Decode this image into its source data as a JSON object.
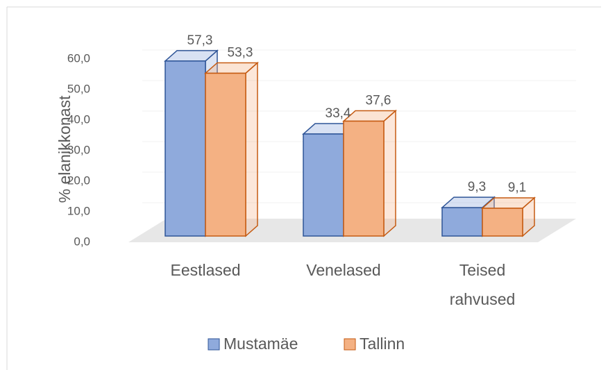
{
  "chart_data": {
    "type": "bar3d",
    "y_label": "% elanikkonast",
    "categories": [
      "Eestlased",
      "Venelased",
      "Teised rahvused"
    ],
    "series": [
      {
        "name": "Mustamäe",
        "color": "#8faadc",
        "stroke": "#2f5597",
        "values": [
          57.3,
          33.4,
          9.3
        ],
        "value_labels": [
          "57,3",
          "33,4",
          "9,3"
        ]
      },
      {
        "name": "Tallinn",
        "color": "#f4b183",
        "stroke": "#c55a11",
        "values": [
          53.3,
          37.6,
          9.1
        ],
        "value_labels": [
          "53,3",
          "37,6",
          "9,1"
        ]
      }
    ],
    "ylim": [
      0,
      60
    ],
    "yticks": [
      {
        "value": 0,
        "label": "0,0"
      },
      {
        "value": 10,
        "label": "10,0"
      },
      {
        "value": 20,
        "label": "20,0"
      },
      {
        "value": 30,
        "label": "30,0"
      },
      {
        "value": 40,
        "label": "40,0"
      },
      {
        "value": 50,
        "label": "50,0"
      },
      {
        "value": 60,
        "label": "60,0"
      }
    ],
    "grid": true,
    "legend": "bottom"
  }
}
